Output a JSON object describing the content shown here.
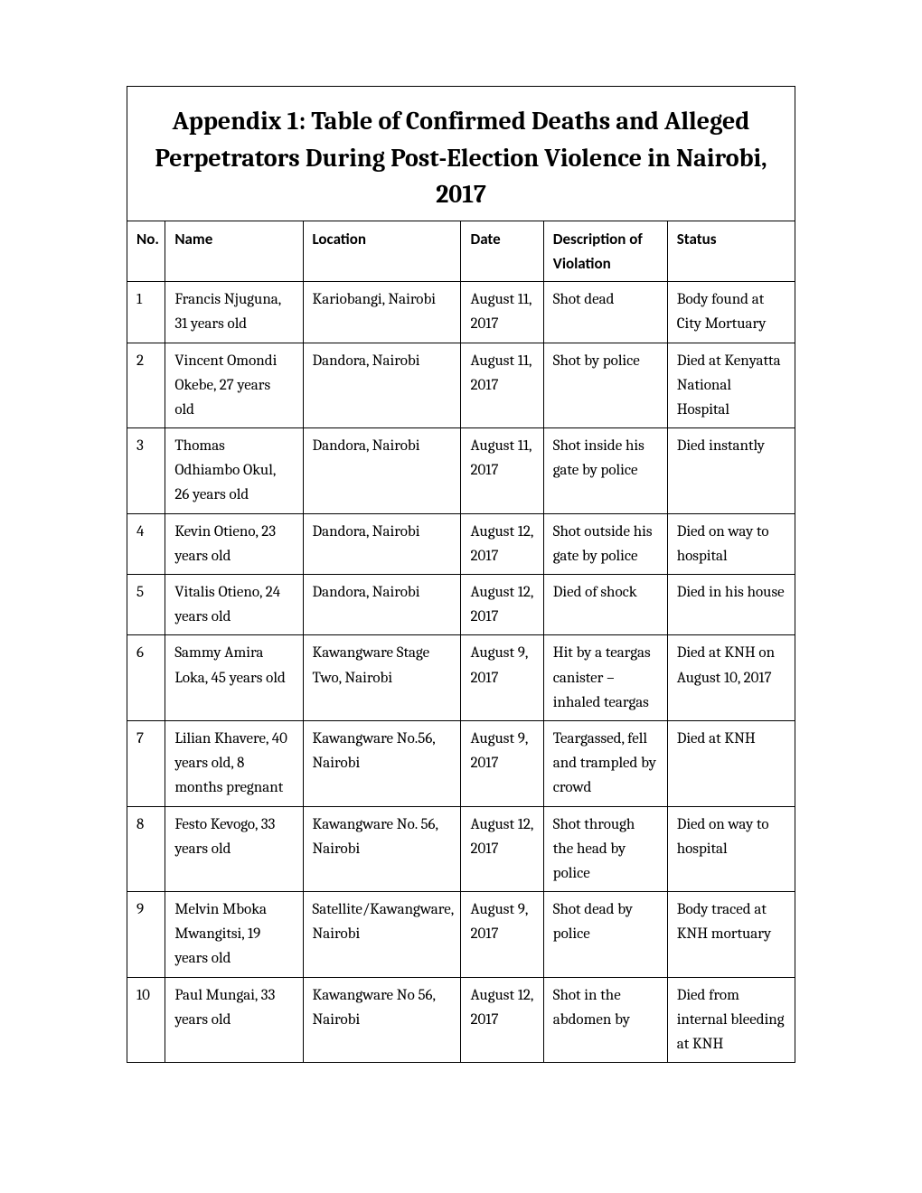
{
  "title": "Appendix 1: Table of Confirmed Deaths and Alleged Perpetrators During Post-Election Violence in Nairobi, 2017",
  "columns": {
    "no": "No.",
    "name": "Name",
    "location": "Location",
    "date": "Date",
    "description": "Description of Violation",
    "status": "Status"
  },
  "rows": [
    {
      "no": "1",
      "name": "Francis Njuguna, 31 years old",
      "location": "Kariobangi, Nairobi",
      "date": "August 11, 2017",
      "description": "Shot dead",
      "status": "Body found at City Mortuary"
    },
    {
      "no": "2",
      "name": "Vincent Omondi Okebe, 27 years old",
      "location": "Dandora, Nairobi",
      "date": "August 11, 2017",
      "description": "Shot by police",
      "status": "Died at Kenyatta National Hospital"
    },
    {
      "no": "3",
      "name": "Thomas Odhiambo Okul, 26 years old",
      "location": "Dandora, Nairobi",
      "date": "August 11, 2017",
      "description": "Shot inside his gate by police",
      "status": "Died instantly"
    },
    {
      "no": "4",
      "name": "Kevin Otieno, 23 years old",
      "location": "Dandora, Nairobi",
      "date": "August 12, 2017",
      "description": "Shot outside his gate by police",
      "status": "Died on way to hospital"
    },
    {
      "no": "5",
      "name": "Vitalis Otieno, 24 years old",
      "location": "Dandora, Nairobi",
      "date": "August 12, 2017",
      "description": "Died of shock",
      "status": "Died in his house"
    },
    {
      "no": "6",
      "name": "Sammy Amira Loka, 45 years old",
      "location": "Kawangware Stage Two, Nairobi",
      "date": "August 9, 2017",
      "description": "Hit by a teargas canister – inhaled teargas",
      "status": "Died at KNH on August 10, 2017"
    },
    {
      "no": "7",
      "name": "Lilian Khavere, 40 years old, 8 months pregnant",
      "location": "Kawangware No.56, Nairobi",
      "date": "August 9, 2017",
      "description": "Teargassed, fell and trampled by crowd",
      "status": "Died at KNH"
    },
    {
      "no": "8",
      "name": "Festo Kevogo, 33 years old",
      "location": "Kawangware No. 56, Nairobi",
      "date": "August 12, 2017",
      "description": "Shot through the head by police",
      "status": "Died on way to hospital"
    },
    {
      "no": "9",
      "name": "Melvin Mboka Mwangitsi, 19 years old",
      "location": "Satellite/Kawangware, Nairobi",
      "date": "August 9, 2017",
      "description": "Shot dead by police",
      "status": "Body traced at KNH mortuary"
    },
    {
      "no": "10",
      "name": "Paul Mungai, 33 years old",
      "location": "Kawangware No 56, Nairobi",
      "date": "August 12, 2017",
      "description": "Shot in the abdomen by",
      "status": "Died from internal bleeding at KNH"
    }
  ]
}
